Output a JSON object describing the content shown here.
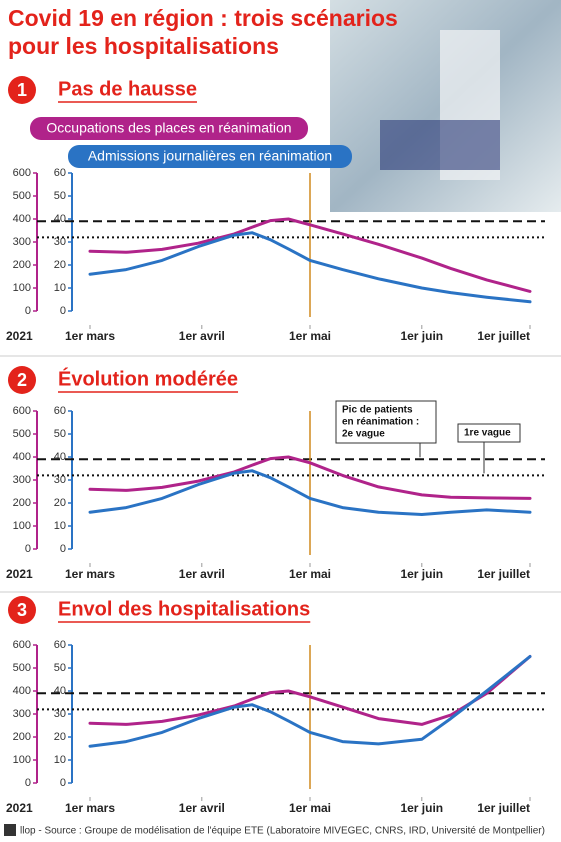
{
  "header": {
    "title_lines": [
      "Covid 19 en région : trois scénarios",
      "pour les hospitalisations"
    ]
  },
  "source": "llop - Source : Groupe de modélisation de l'équipe ETE (Laboratoire MIVEGEC, CNRS, IRD, Université de Montpellier)",
  "chart_data": [
    {
      "type": "line",
      "panel_number": "1",
      "title": "Pas de hausse",
      "year_label": "2021",
      "x": [
        0,
        10,
        20,
        30,
        40,
        45,
        50,
        55,
        61,
        70,
        80,
        92,
        100,
        110,
        122
      ],
      "xlim": [
        0,
        122
      ],
      "xticks": [
        {
          "value": 0,
          "label": "1er mars"
        },
        {
          "value": 31,
          "label": "1er avril"
        },
        {
          "value": 61,
          "label": "1er mai"
        },
        {
          "value": 92,
          "label": "1er juin"
        },
        {
          "value": 122,
          "label": "1er juillet"
        }
      ],
      "ylim": [
        0,
        600
      ],
      "yticks": [
        0,
        100,
        200,
        300,
        400,
        500,
        600
      ],
      "y2lim": [
        0,
        60
      ],
      "y2ticks": [
        0,
        10,
        20,
        30,
        40,
        50,
        60
      ],
      "vline": 61,
      "hlines": [
        {
          "value": 390,
          "style": "dashed"
        },
        {
          "value": 320,
          "style": "dotted"
        }
      ],
      "series": [
        {
          "name": "Occupations des places en réanimation",
          "color": "#b0238a",
          "values": [
            260,
            255,
            268,
            295,
            335,
            365,
            393,
            400,
            375,
            335,
            290,
            230,
            185,
            135,
            85
          ]
        },
        {
          "name": "Admissions journalières en réanimation",
          "color": "#2a73c4",
          "axis": "y2",
          "values": [
            16,
            18,
            22,
            28,
            33,
            34,
            31,
            27,
            22,
            18,
            14,
            10,
            8,
            6,
            4
          ]
        }
      ]
    },
    {
      "type": "line",
      "panel_number": "2",
      "title": "Évolution modérée",
      "year_label": "2021",
      "x": [
        0,
        10,
        20,
        30,
        40,
        45,
        50,
        55,
        61,
        70,
        80,
        92,
        100,
        110,
        122
      ],
      "xlim": [
        0,
        122
      ],
      "xticks": [
        {
          "value": 0,
          "label": "1er mars"
        },
        {
          "value": 31,
          "label": "1er avril"
        },
        {
          "value": 61,
          "label": "1er mai"
        },
        {
          "value": 92,
          "label": "1er juin"
        },
        {
          "value": 122,
          "label": "1er juillet"
        }
      ],
      "ylim": [
        0,
        600
      ],
      "yticks": [
        0,
        100,
        200,
        300,
        400,
        500,
        600
      ],
      "y2lim": [
        0,
        60
      ],
      "y2ticks": [
        0,
        10,
        20,
        30,
        40,
        50,
        60
      ],
      "vline": 61,
      "hlines": [
        {
          "value": 390,
          "style": "dashed"
        },
        {
          "value": 320,
          "style": "dotted"
        }
      ],
      "annotations": [
        {
          "lines": [
            "Pic de patients",
            "en réanimation :",
            "2e vague"
          ]
        },
        {
          "lines": [
            "1re vague"
          ]
        }
      ],
      "series": [
        {
          "name": "Occupations des places en réanimation",
          "color": "#b0238a",
          "values": [
            260,
            255,
            268,
            295,
            335,
            365,
            393,
            400,
            375,
            320,
            270,
            235,
            225,
            222,
            220
          ]
        },
        {
          "name": "Admissions journalières en réanimation",
          "color": "#2a73c4",
          "axis": "y2",
          "values": [
            16,
            18,
            22,
            28,
            33,
            34,
            31,
            27,
            22,
            18,
            16,
            15,
            16,
            17,
            16
          ]
        }
      ]
    },
    {
      "type": "line",
      "panel_number": "3",
      "title": "Envol des hospitalisations",
      "year_label": "2021",
      "x": [
        0,
        10,
        20,
        30,
        40,
        45,
        50,
        55,
        61,
        70,
        80,
        92,
        100,
        110,
        122
      ],
      "xlim": [
        0,
        122
      ],
      "xticks": [
        {
          "value": 0,
          "label": "1er mars"
        },
        {
          "value": 31,
          "label": "1er avril"
        },
        {
          "value": 61,
          "label": "1er mai"
        },
        {
          "value": 92,
          "label": "1er juin"
        },
        {
          "value": 122,
          "label": "1er juillet"
        }
      ],
      "ylim": [
        0,
        600
      ],
      "yticks": [
        0,
        100,
        200,
        300,
        400,
        500,
        600
      ],
      "y2lim": [
        0,
        60
      ],
      "y2ticks": [
        0,
        10,
        20,
        30,
        40,
        50,
        60
      ],
      "vline": 61,
      "hlines": [
        {
          "value": 390,
          "style": "dashed"
        },
        {
          "value": 320,
          "style": "dotted"
        }
      ],
      "series": [
        {
          "name": "Occupations des places en réanimation",
          "color": "#b0238a",
          "values": [
            260,
            255,
            268,
            295,
            335,
            365,
            393,
            400,
            375,
            330,
            280,
            255,
            295,
            390,
            550
          ]
        },
        {
          "name": "Admissions journalières en réanimation",
          "color": "#2a73c4",
          "axis": "y2",
          "values": [
            16,
            18,
            22,
            28,
            33,
            34,
            31,
            27,
            22,
            18,
            17,
            19,
            28,
            40,
            55
          ]
        }
      ]
    }
  ]
}
